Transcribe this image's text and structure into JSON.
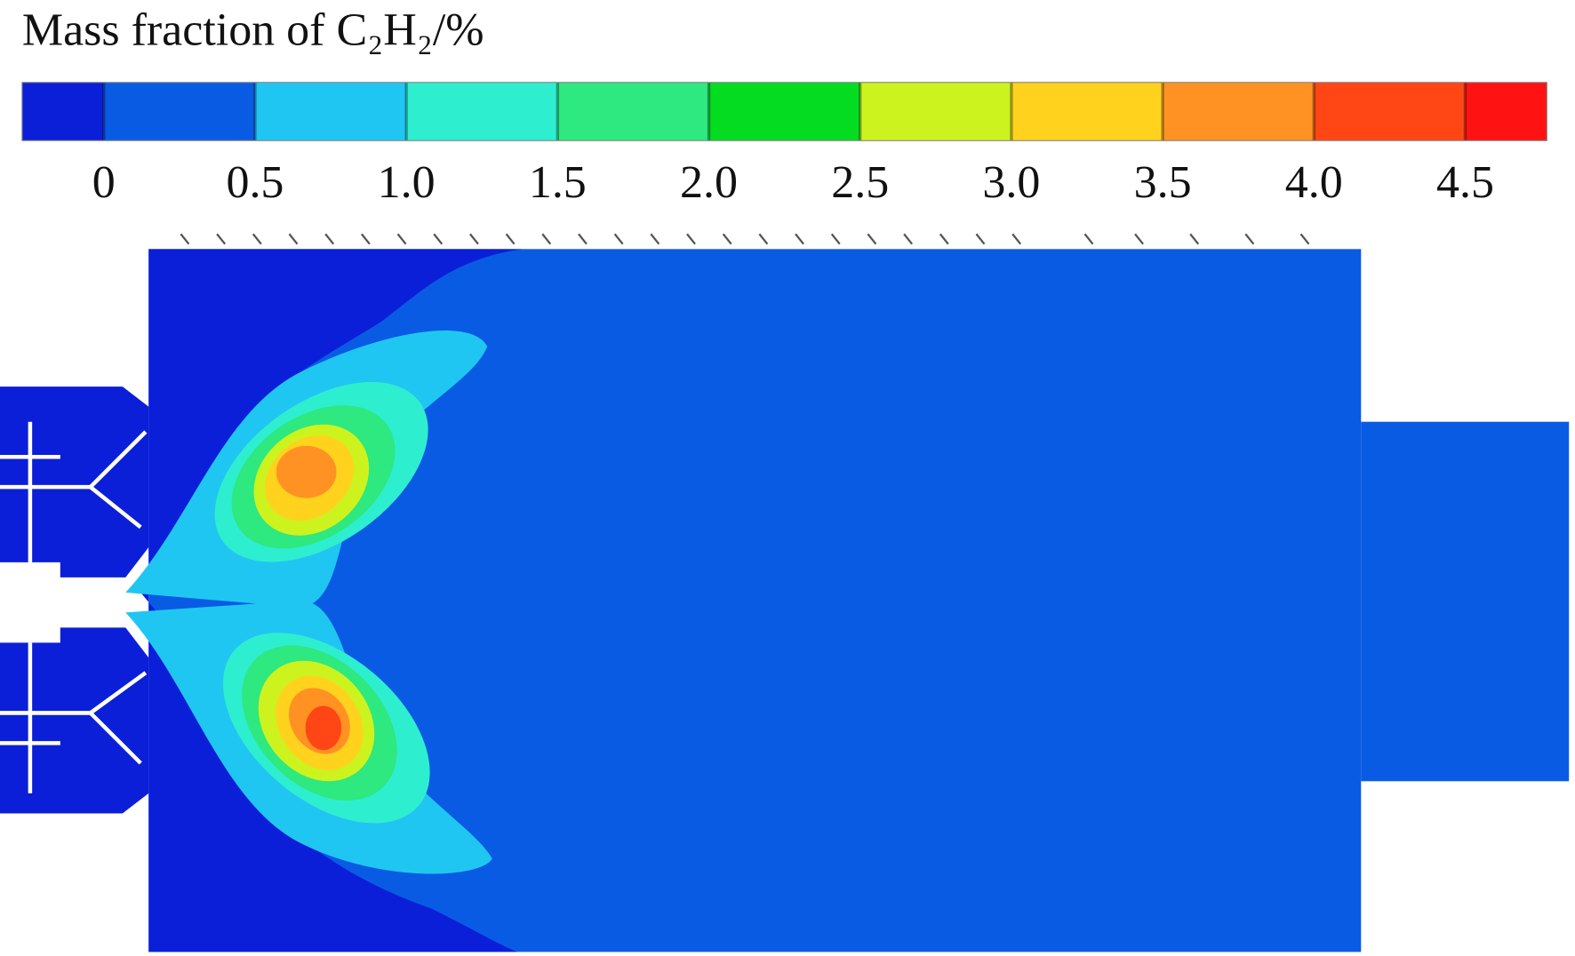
{
  "chart_data": {
    "type": "contour",
    "title": "Mass fraction of C₂H₂/%",
    "colorbar": {
      "lim": [
        -0.27,
        4.77
      ],
      "ticks": [
        0,
        0.5,
        {
          "value": 1,
          "label": "1.0"
        },
        1.5,
        {
          "value": 2,
          "label": "2.0"
        },
        2.5,
        {
          "value": 3,
          "label": "3.0"
        },
        3.5,
        {
          "value": 4,
          "label": "4.0"
        },
        4.5
      ],
      "colors": [
        "#0b1fd8",
        "#0a5be4",
        "#20c6f2",
        "#2eeed0",
        "#2ee880",
        "#04dc22",
        "#cdf31e",
        "#ffd21e",
        "#ff9222",
        "#ff4614",
        "#ff1212"
      ]
    }
  }
}
